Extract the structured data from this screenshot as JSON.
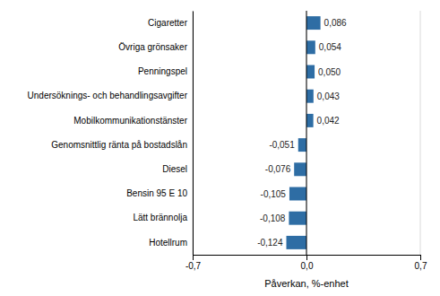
{
  "chart_data": {
    "type": "bar",
    "orientation": "horizontal",
    "categories": [
      "Hotellrum",
      "Lätt brännolja",
      "Bensin 95 E 10",
      "Diesel",
      "Genomsnittlig ränta på bostadslån",
      "Mobilkommunikationstänster",
      "Undersöknings- och behandlingsavgifter",
      "Penningspel",
      "Övriga grönsaker",
      "Cigaretter"
    ],
    "values": [
      -0.124,
      -0.108,
      -0.105,
      -0.076,
      -0.051,
      0.042,
      0.043,
      0.05,
      0.054,
      0.086
    ],
    "value_labels": [
      "-0,124",
      "-0,108",
      "-0,105",
      "-0,076",
      "-0,051",
      "0,042",
      "0,043",
      "0,050",
      "0,054",
      "0,086"
    ],
    "color": "#2e6da4",
    "xlabel": "Påverkan, %-enhet",
    "xlim": [
      -0.7,
      0.7
    ],
    "xticks": [
      {
        "value": -0.7,
        "label": "-0,7"
      },
      {
        "value": 0.0,
        "label": "0,0"
      },
      {
        "value": 0.7,
        "label": "0,7"
      }
    ],
    "grid": true,
    "data_labels": true
  }
}
